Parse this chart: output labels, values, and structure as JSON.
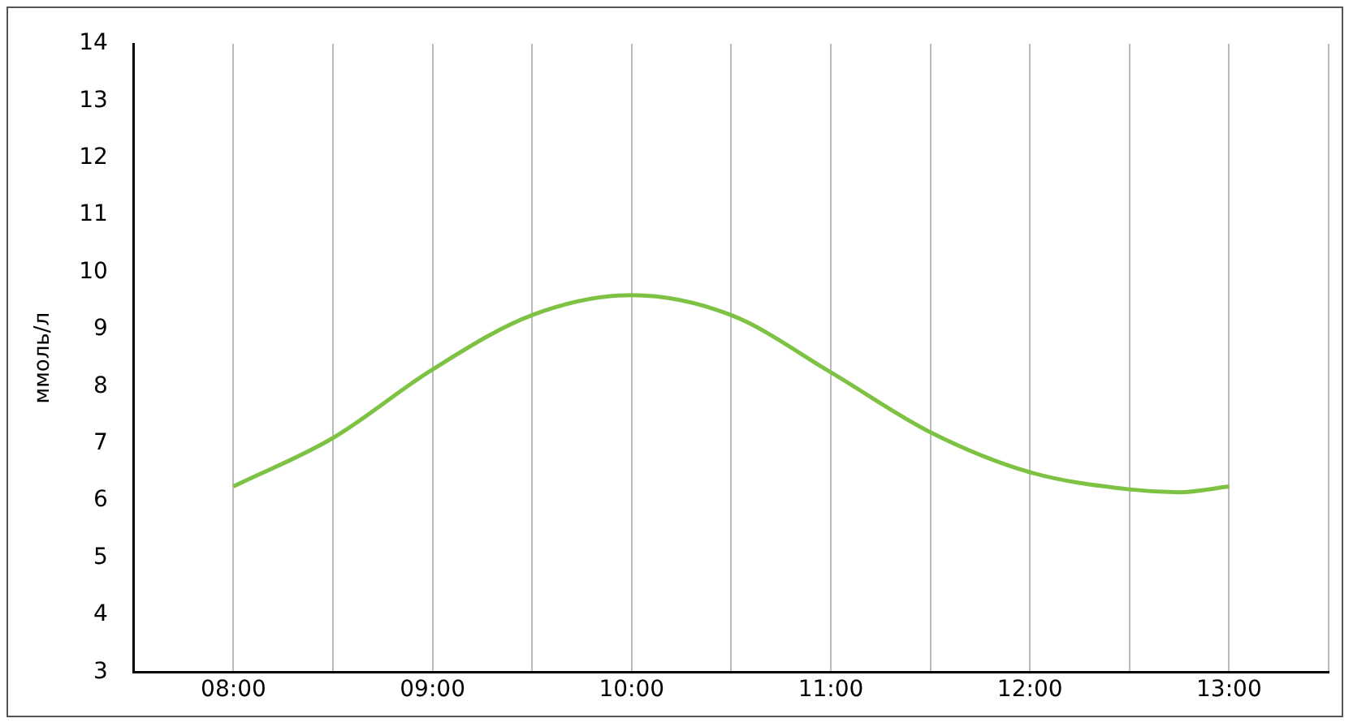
{
  "chart_data": {
    "type": "line",
    "ylabel": "ммоль/л",
    "x": [
      8,
      8.5,
      9,
      9.5,
      10,
      10.5,
      11,
      11.5,
      12,
      12.5,
      12.75,
      13
    ],
    "series": [
      {
        "color": "#7dc242",
        "values": [
          6.25,
          7.1,
          8.3,
          9.25,
          9.6,
          9.25,
          8.25,
          7.2,
          6.5,
          6.2,
          6.15,
          6.25
        ]
      }
    ],
    "xlim": [
      7.5,
      13.5
    ],
    "xticks": [
      {
        "value": 7.5,
        "label": null
      },
      {
        "value": 8,
        "label": "08:00"
      },
      {
        "value": 8.5,
        "label": null
      },
      {
        "value": 9,
        "label": "09:00"
      },
      {
        "value": 9.5,
        "label": null
      },
      {
        "value": 10,
        "label": "10:00"
      },
      {
        "value": 10.5,
        "label": null
      },
      {
        "value": 11,
        "label": "11:00"
      },
      {
        "value": 11.5,
        "label": null
      },
      {
        "value": 12,
        "label": "12:00"
      },
      {
        "value": 12.5,
        "label": null
      },
      {
        "value": 13,
        "label": "13:00"
      },
      {
        "value": 13.5,
        "label": null
      }
    ],
    "ylim": [
      3,
      14
    ],
    "yticks": [
      3,
      4,
      5,
      6,
      7,
      8,
      9,
      10,
      11,
      12,
      13,
      14
    ],
    "grid": "x",
    "legend": false,
    "marker": "none",
    "line_style": "solid"
  }
}
